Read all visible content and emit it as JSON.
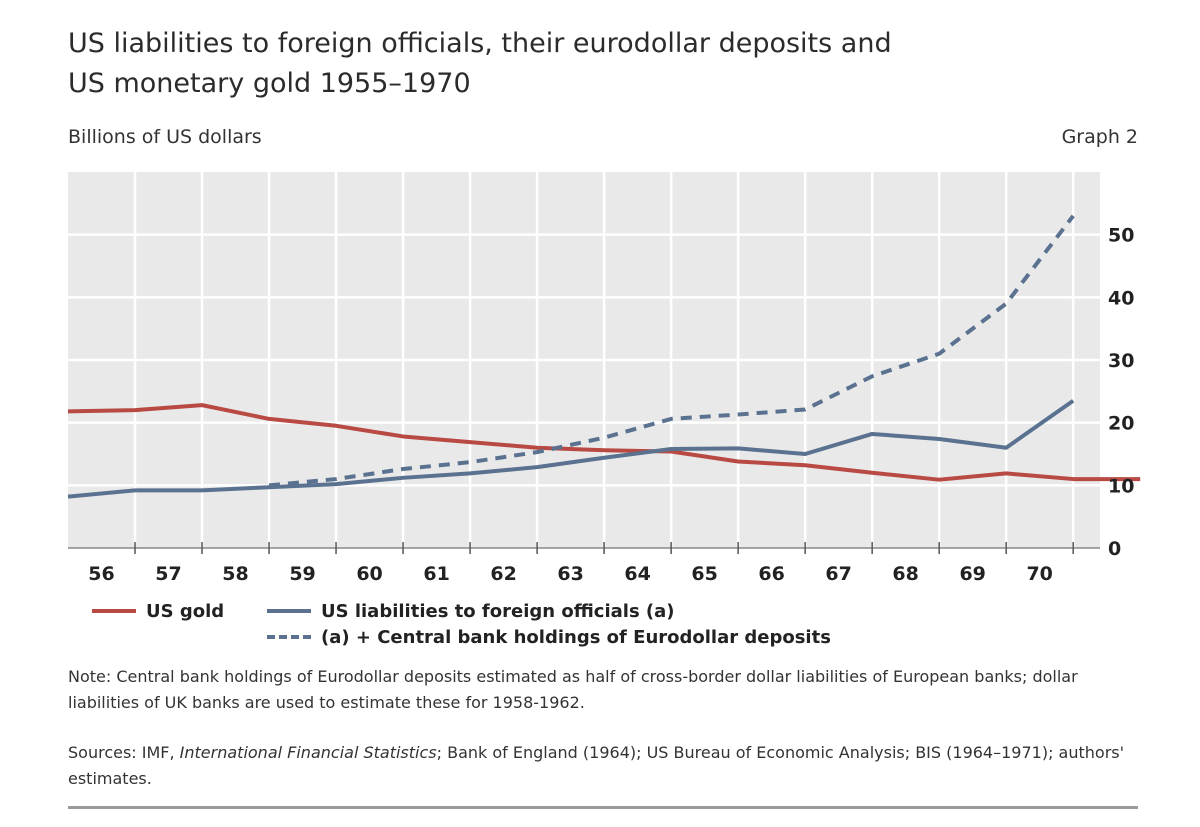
{
  "header": {
    "title_line1": "US liabilities to foreign officials, their eurodollar deposits and",
    "title_line2": "US monetary gold 1955–1970",
    "unit": "Billions of US dollars",
    "graph_label": "Graph 2"
  },
  "chart_data": {
    "type": "line",
    "title": "US liabilities to foreign officials, their eurodollar deposits and US monetary gold 1955–1970",
    "ylabel": "Billions of US dollars",
    "categories": [
      "56",
      "57",
      "58",
      "59",
      "60",
      "61",
      "62",
      "63",
      "64",
      "65",
      "66",
      "67",
      "68",
      "69",
      "70"
    ],
    "yticks": [
      0,
      10,
      20,
      30,
      40,
      50
    ],
    "ylim": [
      0,
      60
    ],
    "grid": true,
    "y_axis_side": "right",
    "legend_placement": "bottom",
    "series": [
      {
        "name": "US gold",
        "color": "#b84a43",
        "dash": "solid",
        "x": [
          1955.0,
          1956.0,
          1957.0,
          1958.0,
          1959.0,
          1960.0,
          1961.0,
          1962.0,
          1963.0,
          1964.0,
          1965.0,
          1966.0,
          1967.0,
          1968.0,
          1969.0,
          1970.0,
          1971.0
        ],
        "y": [
          21.8,
          22.0,
          22.8,
          20.6,
          19.5,
          17.8,
          16.9,
          16.0,
          15.6,
          15.4,
          13.8,
          13.2,
          12.0,
          10.9,
          11.9,
          11.0,
          11.0
        ]
      },
      {
        "name": "US liabilities to foreign officials (a)",
        "color": "#5a7290",
        "dash": "solid",
        "x": [
          1955.0,
          1956.0,
          1957.0,
          1958.0,
          1959.0,
          1960.0,
          1961.0,
          1962.0,
          1963.0,
          1964.0,
          1965.0,
          1966.0,
          1967.0,
          1968.0,
          1969.0,
          1970.0
        ],
        "y": [
          8.2,
          9.2,
          9.2,
          9.7,
          10.2,
          11.2,
          11.9,
          12.9,
          14.4,
          15.8,
          15.9,
          15.0,
          18.2,
          17.4,
          16.0,
          23.5
        ]
      },
      {
        "name": "(a) + Central bank holdings of Eurodollar deposits",
        "color": "#5a7290",
        "dash": "dashed",
        "x": [
          1958.0,
          1959.0,
          1960.0,
          1961.0,
          1962.0,
          1963.0,
          1964.0,
          1965.0,
          1966.0,
          1967.0,
          1968.0,
          1969.0,
          1970.0
        ],
        "y": [
          10.0,
          11.0,
          12.6,
          13.7,
          15.3,
          17.6,
          20.6,
          21.3,
          22.1,
          27.4,
          31.0,
          39.0,
          53.0
        ]
      }
    ]
  },
  "note": "Note: Central bank holdings of Eurodollar deposits estimated as half of cross-border dollar liabilities of European banks; dollar liabilities of UK banks are used to estimate these for 1958-1962.",
  "sources": {
    "prefix": "Sources: IMF,",
    "italic": "International Financial Statistics",
    "suffix": "; Bank of England (1964); US Bureau of Economic Analysis; BIS (1964–1971); authors' estimates."
  }
}
